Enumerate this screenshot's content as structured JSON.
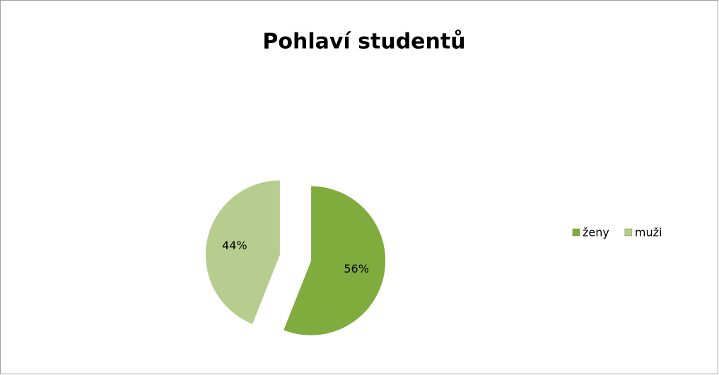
{
  "chart_data": {
    "type": "pie",
    "title": "Pohlaví studentů",
    "categories": [
      "ženy",
      "muži"
    ],
    "values": [
      56,
      44
    ],
    "value_labels": [
      "56%",
      "44%"
    ],
    "colors": [
      "#80ab3d",
      "#b6cd8f"
    ],
    "legend": "right"
  }
}
